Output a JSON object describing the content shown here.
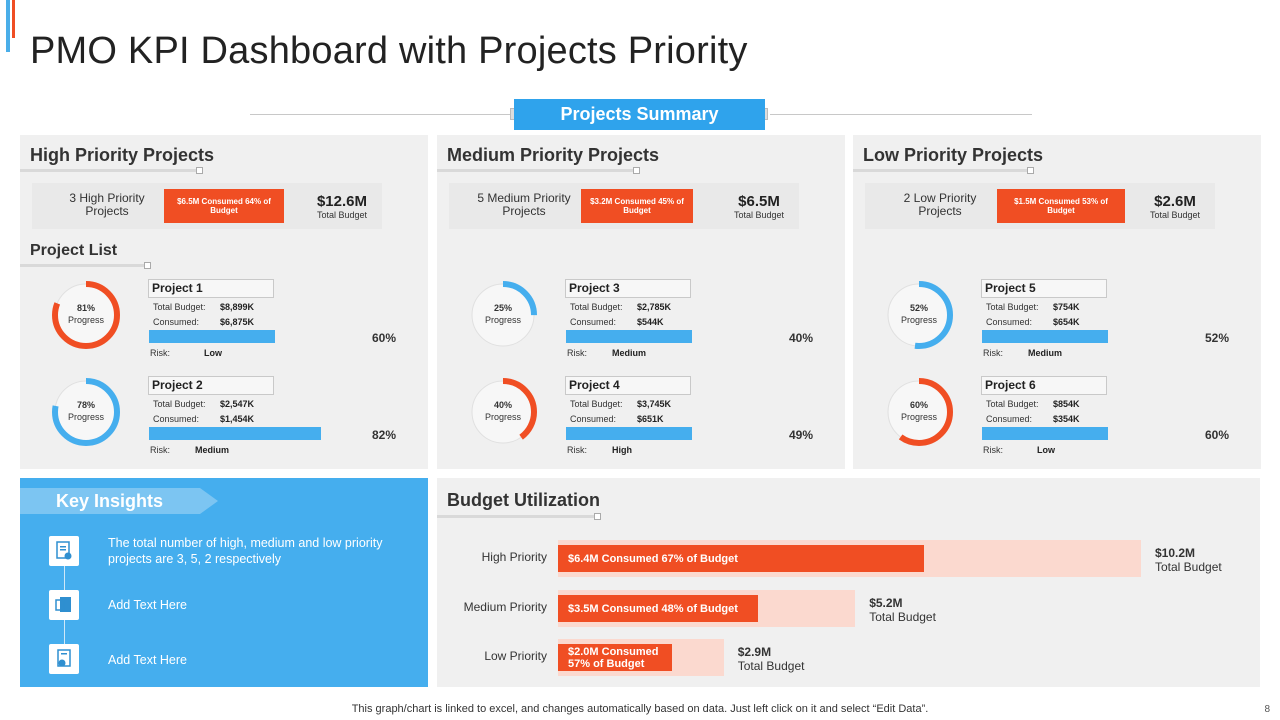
{
  "title": "PMO KPI Dashboard with Projects Priority",
  "summary_label": "Projects Summary",
  "colors": {
    "accent_red": "#f04e23",
    "accent_blue": "#45aeee",
    "panel_bg": "#f0f0f0"
  },
  "high": {
    "title": "High Priority Projects",
    "count": "3 High Priority Projects",
    "consumed": "$6.5M Consumed 64% of Budget",
    "total_amt": "$12.6M",
    "total_lbl": "Total Budget",
    "list_title": "Project List",
    "projects": [
      {
        "name": "Project 1",
        "progress": 81,
        "progress_pct": "81%",
        "progress_lbl": "Progress",
        "ring_color": "#f04e23",
        "budget_lbl": "Total Budget:",
        "budget": "$8,899K",
        "consumed_lbl": "Consumed:",
        "consumed": "$6,875K",
        "bar": 60,
        "bar_pct": "60%",
        "risk_lbl": "Risk:",
        "risk": "Low"
      },
      {
        "name": "Project 2",
        "progress": 78,
        "progress_pct": "78%",
        "progress_lbl": "Progress",
        "ring_color": "#45aeee",
        "budget_lbl": "Total Budget:",
        "budget": "$2,547K",
        "consumed_lbl": "Consumed:",
        "consumed": "$1,454K",
        "bar": 82,
        "bar_pct": "82%",
        "risk_lbl": "Risk:",
        "risk": "Medium"
      }
    ]
  },
  "medium": {
    "title": "Medium Priority Projects",
    "count": "5 Medium Priority Projects",
    "consumed": "$3.2M Consumed 45% of Budget",
    "total_amt": "$6.5M",
    "total_lbl": "Total Budget",
    "projects": [
      {
        "name": "Project 3",
        "progress": 25,
        "progress_pct": "25%",
        "progress_lbl": "Progress",
        "ring_color": "#45aeee",
        "budget_lbl": "Total Budget:",
        "budget": "$2,785K",
        "consumed_lbl": "Consumed:",
        "consumed": "$544K",
        "bar": 40,
        "bar_pct": "40%",
        "risk_lbl": "Risk:",
        "risk": "Medium"
      },
      {
        "name": "Project 4",
        "progress": 40,
        "progress_pct": "40%",
        "progress_lbl": "Progress",
        "ring_color": "#f04e23",
        "budget_lbl": "Total Budget:",
        "budget": "$3,745K",
        "consumed_lbl": "Consumed:",
        "consumed": "$651K",
        "bar": 49,
        "bar_pct": "49%",
        "risk_lbl": "Risk:",
        "risk": "High"
      }
    ]
  },
  "low": {
    "title": "Low Priority Projects",
    "count": "2 Low Priority Projects",
    "consumed": "$1.5M Consumed 53% of Budget",
    "total_amt": "$2.6M",
    "total_lbl": "Total Budget",
    "projects": [
      {
        "name": "Project 5",
        "progress": 52,
        "progress_pct": "52%",
        "progress_lbl": "Progress",
        "ring_color": "#45aeee",
        "budget_lbl": "Total Budget:",
        "budget": "$754K",
        "consumed_lbl": "Consumed:",
        "consumed": "$654K",
        "bar": 52,
        "bar_pct": "52%",
        "risk_lbl": "Risk:",
        "risk": "Medium"
      },
      {
        "name": "Project 6",
        "progress": 60,
        "progress_pct": "60%",
        "progress_lbl": "Progress",
        "ring_color": "#f04e23",
        "budget_lbl": "Total Budget:",
        "budget": "$854K",
        "consumed_lbl": "Consumed:",
        "consumed": "$354K",
        "bar": 60,
        "bar_pct": "60%",
        "risk_lbl": "Risk:",
        "risk": "Low"
      }
    ]
  },
  "insights": {
    "title": "Key Insights",
    "items": [
      {
        "icon": "report-icon",
        "text": "The total number of high, medium and low priority projects are 3, 5, 2 respectively"
      },
      {
        "icon": "document-icon",
        "text": "Add Text Here"
      },
      {
        "icon": "settings-doc-icon",
        "text": "Add Text Here"
      }
    ]
  },
  "budget": {
    "title": "Budget Utilization",
    "rows": [
      {
        "label": "High Priority",
        "total": 10.2,
        "consumed": 6.4,
        "pct": 67,
        "bar_text": "$6.4M Consumed 67% of Budget",
        "total_amt": "$10.2M",
        "total_lbl": "Total Budget"
      },
      {
        "label": "Medium Priority",
        "total": 5.2,
        "consumed": 3.5,
        "pct": 48,
        "bar_text": "$3.5M Consumed 48% of Budget",
        "total_amt": "$5.2M",
        "total_lbl": "Total Budget"
      },
      {
        "label": "Low Priority",
        "total": 2.9,
        "consumed": 2.0,
        "pct": 57,
        "bar_text": "$2.0M Consumed 57% of Budget",
        "total_amt": "$2.9M",
        "total_lbl": "Total Budget"
      }
    ]
  },
  "footer": "This graph/chart is linked to excel,  and changes automatically based on data. Just left click on it and select “Edit Data”.",
  "page_number": "8"
}
